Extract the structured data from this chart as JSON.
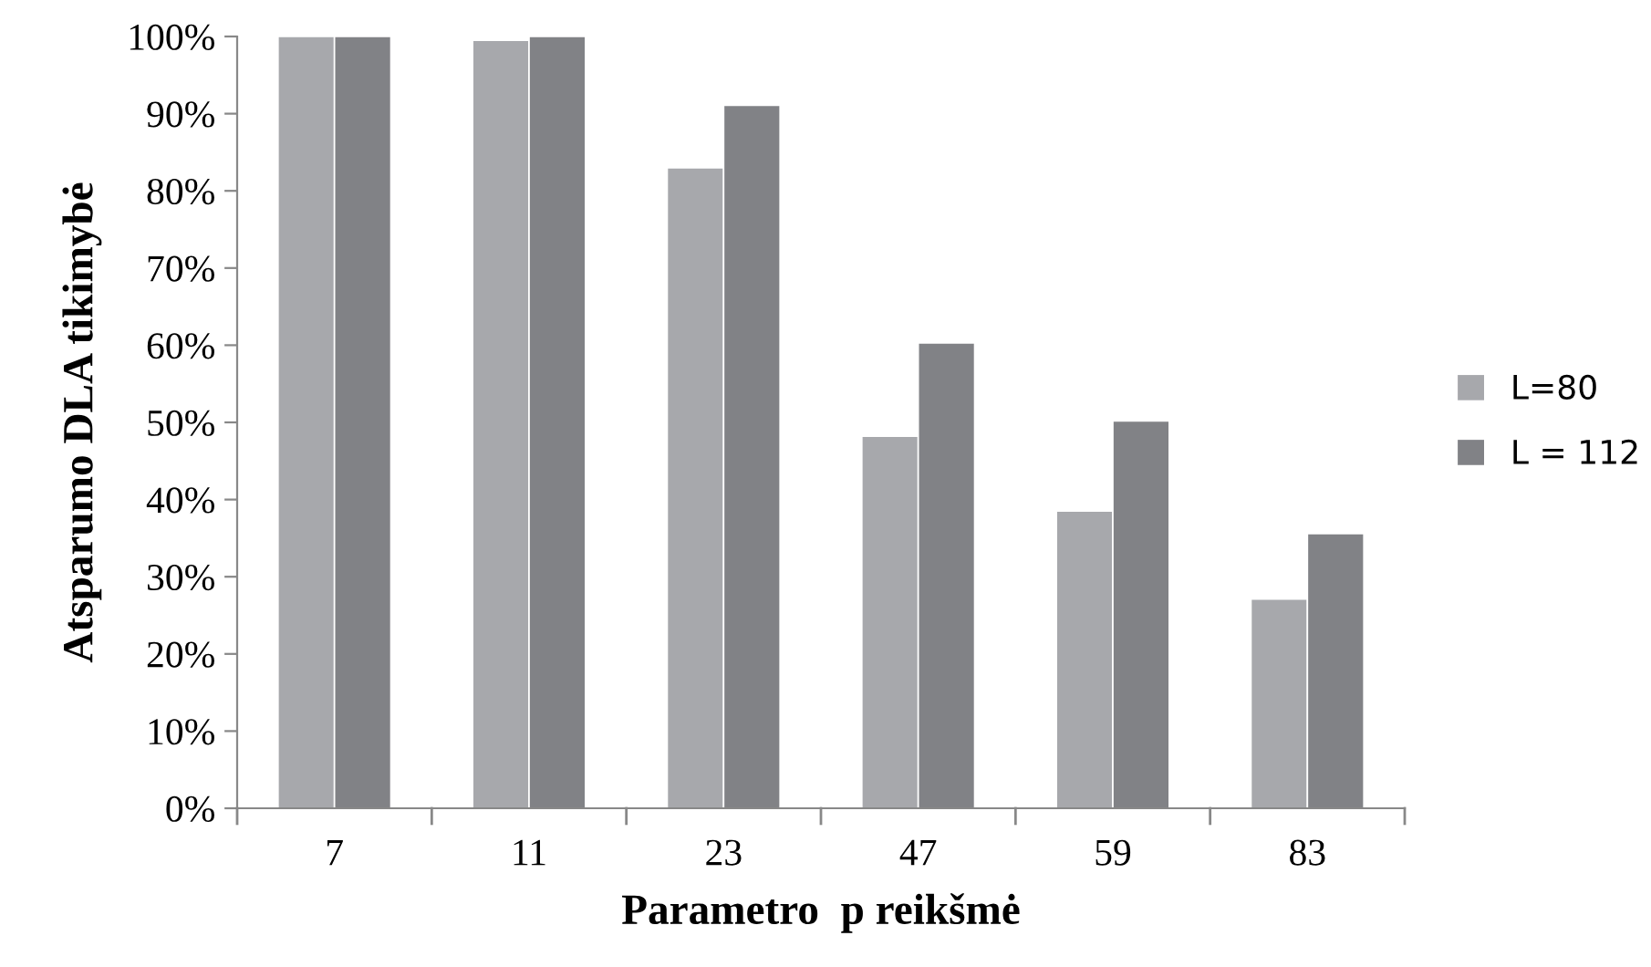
{
  "chart_data": {
    "type": "bar",
    "xlabel": "Parametro  p reikšmė",
    "ylabel": "Atsparumo DLA tikimybė",
    "categories": [
      "7",
      "11",
      "23",
      "47",
      "59",
      "83"
    ],
    "series": [
      {
        "name": "L=80",
        "color": "#a7a8ac",
        "values": [
          100,
          99.5,
          83.0,
          48.2,
          38.5,
          27.1
        ]
      },
      {
        "name": "L = 112",
        "color": "#818286",
        "values": [
          100,
          100,
          91.1,
          60.3,
          50.2,
          35.6
        ]
      }
    ],
    "ylim": [
      0,
      100
    ],
    "yticks": [
      {
        "value": 0,
        "label": "0%"
      },
      {
        "value": 10,
        "label": "10%"
      },
      {
        "value": 20,
        "label": "20%"
      },
      {
        "value": 30,
        "label": "30%"
      },
      {
        "value": 40,
        "label": "40%"
      },
      {
        "value": 50,
        "label": "50%"
      },
      {
        "value": 60,
        "label": "60%"
      },
      {
        "value": 70,
        "label": "70%"
      },
      {
        "value": 80,
        "label": "80%"
      },
      {
        "value": 90,
        "label": "90%"
      },
      {
        "value": 100,
        "label": "100%"
      }
    ],
    "grid": false,
    "legend": "right"
  }
}
